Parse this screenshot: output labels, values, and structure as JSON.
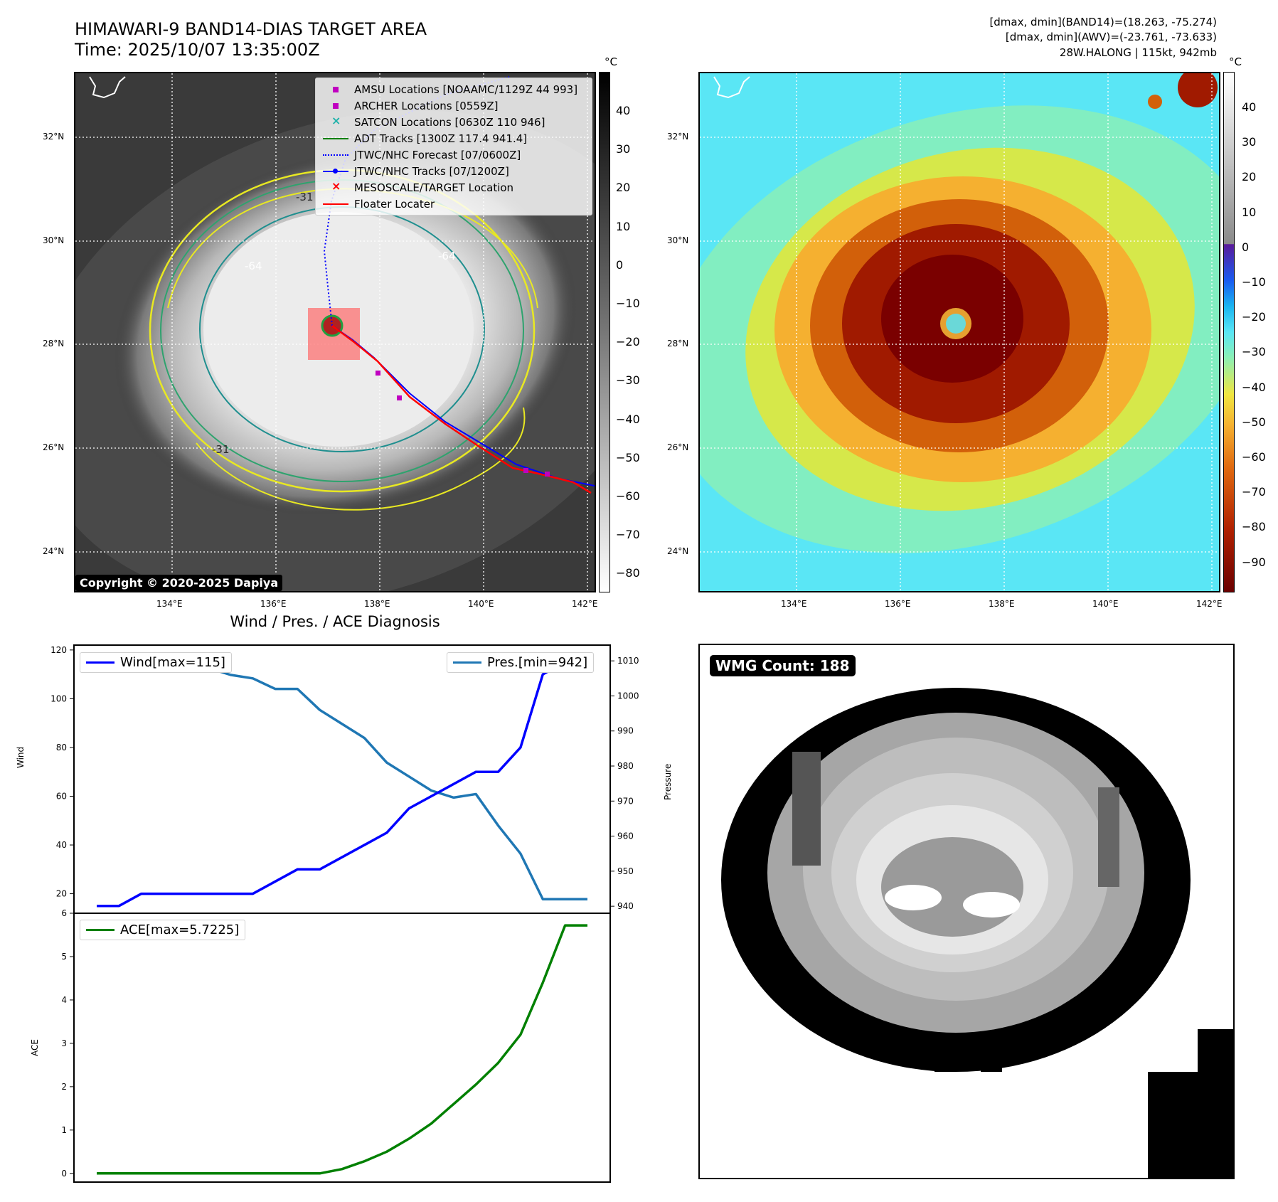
{
  "header": {
    "title_line1": "HIMAWARI-9 BAND14-DIAS TARGET AREA",
    "title_line2": "Time: 2025/10/07 13:35:00Z",
    "info_line1": "[dmax, dmin](BAND14)=(18.263, -75.274)",
    "info_line2": "[dmax, dmin](AWV)=(-23.761, -73.633)",
    "info_line3": "28W.HALONG | 115kt, 942mb"
  },
  "maps": {
    "lat_labels": [
      "32°N",
      "30°N",
      "28°N",
      "26°N",
      "24°N"
    ],
    "lon_labels": [
      "134°E",
      "136°E",
      "138°E",
      "140°E",
      "142°E"
    ],
    "copyright": "Copyright © 2020-2025 Dapiya",
    "contour_labels": [
      "-64",
      "-64",
      "-31",
      "-31"
    ],
    "legend": [
      {
        "label": "AMSU Locations [NOAAMC/1129Z 44 993]",
        "color": "#c000c0",
        "symbol": "square"
      },
      {
        "label": "ARCHER Locations [0559Z]",
        "color": "#c000c0",
        "symbol": "square"
      },
      {
        "label": "SATCON Locations [0630Z 110 946]",
        "color": "#20b2aa",
        "symbol": "x"
      },
      {
        "label": "ADT Tracks [1300Z 117.4 941.4]",
        "color": "#008000",
        "symbol": "line"
      },
      {
        "label": "JTWC/NHC Forecast [07/0600Z]",
        "color": "#0000ff",
        "symbol": "dotted"
      },
      {
        "label": "JTWC/NHC Tracks [07/1200Z]",
        "color": "#0000ff",
        "symbol": "line-dot"
      },
      {
        "label": "MESOSCALE/TARGET Location",
        "color": "#ff0000",
        "symbol": "x"
      },
      {
        "label": "Floater Locater",
        "color": "#ff0000",
        "symbol": "line"
      }
    ],
    "colorbar1": {
      "unit": "°C",
      "ticks": [
        "40",
        "30",
        "20",
        "10",
        "0",
        "−10",
        "−20",
        "−30",
        "−40",
        "−50",
        "−60",
        "−70",
        "−80"
      ]
    },
    "colorbar2": {
      "unit": "°C",
      "ticks": [
        "40",
        "30",
        "20",
        "10",
        "0",
        "−10",
        "−20",
        "−30",
        "−40",
        "−50",
        "−60",
        "−70",
        "−80",
        "−90"
      ]
    }
  },
  "diagnosis": {
    "title": "Wind / Pres. / ACE Diagnosis",
    "wind_label": "Wind",
    "pressure_label": "Pressure",
    "ace_label": "ACE",
    "wind_legend": "Wind[max=115]",
    "pres_legend": "Pres.[min=942]",
    "ace_legend": "ACE[max=5.7225]"
  },
  "wmg": {
    "badge": "WMG Count: 188"
  },
  "colors": {
    "wind": "#0000ff",
    "pressure": "#1f77b4",
    "ace": "#008000"
  },
  "chart_data": [
    {
      "type": "line",
      "title": "Wind / Pres. / ACE Diagnosis",
      "ylabel": "Wind",
      "y2label": "Pressure",
      "ylim": [
        12,
        122
      ],
      "y2lim": [
        938,
        1014.5
      ],
      "y_ticks": [
        20,
        40,
        60,
        80,
        100,
        120
      ],
      "y2_ticks": [
        940,
        950,
        960,
        970,
        980,
        990,
        1000,
        1010
      ],
      "x": [
        0,
        1,
        2,
        3,
        4,
        5,
        6,
        7,
        8,
        9,
        10,
        11,
        12,
        13,
        14,
        15,
        16,
        17,
        18,
        19,
        20,
        21,
        22
      ],
      "series": [
        {
          "name": "Wind[max=115]",
          "axis": "left",
          "values": [
            15,
            15,
            20,
            20,
            20,
            20,
            20,
            20,
            25,
            30,
            30,
            35,
            40,
            45,
            55,
            60,
            65,
            70,
            70,
            80,
            110,
            115,
            115
          ]
        },
        {
          "name": "Pres.[min=942]",
          "axis": "right",
          "values": [
            1009,
            1009,
            1009,
            1010,
            1010,
            1008,
            1006,
            1005,
            1002,
            1002,
            996,
            992,
            988,
            981,
            977,
            973,
            971,
            972,
            963,
            955,
            942,
            942,
            942
          ]
        }
      ]
    },
    {
      "type": "line",
      "ylabel": "ACE",
      "ylim": [
        -0.2,
        6
      ],
      "y_ticks": [
        0,
        1,
        2,
        3,
        4,
        5,
        6
      ],
      "x": [
        0,
        1,
        2,
        3,
        4,
        5,
        6,
        7,
        8,
        9,
        10,
        11,
        12,
        13,
        14,
        15,
        16,
        17,
        18,
        19,
        20,
        21,
        22
      ],
      "series": [
        {
          "name": "ACE[max=5.7225]",
          "values": [
            0,
            0,
            0,
            0,
            0,
            0,
            0,
            0,
            0,
            0,
            0,
            0.1,
            0.28,
            0.5,
            0.8,
            1.15,
            1.6,
            2.05,
            2.55,
            3.2,
            4.4,
            5.72,
            5.72
          ]
        }
      ]
    }
  ]
}
